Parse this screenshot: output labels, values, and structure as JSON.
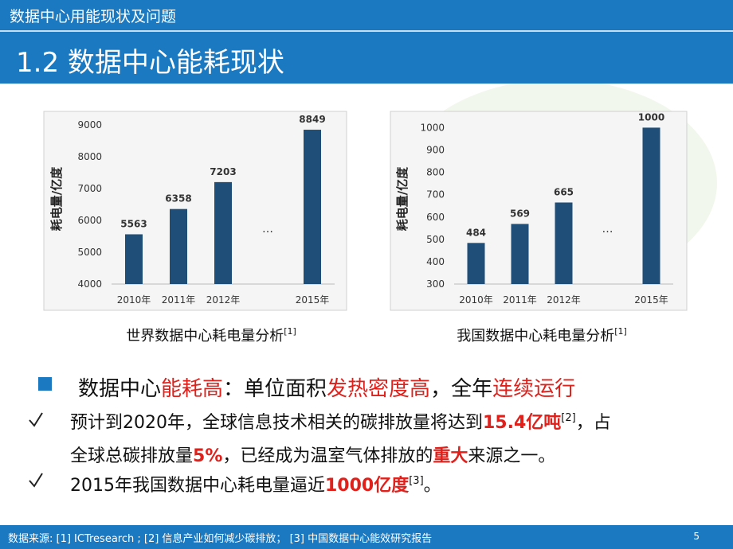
{
  "header": {
    "section": "数据中心用能现状及问题",
    "title": "1.2 数据中心能耗现状"
  },
  "chart_data": [
    {
      "type": "bar",
      "y_label": "耗电量/亿度",
      "categories": [
        "2010年",
        "2011年",
        "2012年",
        null,
        "2015年"
      ],
      "values": [
        5563,
        6358,
        7203,
        null,
        8849
      ],
      "color": "#1f4e79",
      "ylim": [
        4000,
        9300
      ],
      "yticks": [
        4000,
        5000,
        6000,
        7000,
        8000,
        9000
      ],
      "grid": false,
      "annotation": "…",
      "caption": "世界数据中心耗电量分析",
      "caption_ref": "[1]"
    },
    {
      "type": "bar",
      "y_label": "耗电量/亿度",
      "categories": [
        "2010年",
        "2011年",
        "2012年",
        null,
        "2015年"
      ],
      "values": [
        484,
        569,
        665,
        null,
        1000
      ],
      "color": "#1f4e79",
      "ylim": [
        300,
        1030
      ],
      "yticks": [
        300,
        400,
        500,
        600,
        700,
        800,
        900,
        1000
      ],
      "grid": false,
      "annotation": "…",
      "caption": "我国数据中心耗电量分析",
      "caption_ref": "[1]"
    }
  ],
  "bullets": [
    {
      "lines": [
        [
          {
            "text": "数据中心",
            "style": "plain"
          },
          {
            "text": "能耗高",
            "style": "red"
          },
          {
            "text": "：单位面积",
            "style": "plain"
          },
          {
            "text": "发热密度高",
            "style": "red"
          },
          {
            "text": "，全年",
            "style": "plain"
          },
          {
            "text": "连续运行",
            "style": "red"
          }
        ]
      ]
    },
    {
      "lines": [
        [
          {
            "text": "预计到2020年，全球信息技术相关的碳排放量将达到",
            "style": "plain"
          },
          {
            "text": "15.4亿吨",
            "style": "red-bold"
          },
          {
            "text": "[2]",
            "style": "sup"
          },
          {
            "text": "，占",
            "style": "plain"
          }
        ],
        [
          {
            "text": "全球总碳排放量",
            "style": "plain"
          },
          {
            "text": "5%",
            "style": "red-bold"
          },
          {
            "text": "，已经成为温室气体排放的",
            "style": "plain"
          },
          {
            "text": "重大",
            "style": "red-bold"
          },
          {
            "text": "来源之一。",
            "style": "plain"
          }
        ]
      ]
    },
    {
      "lines": [
        [
          {
            "text": "2015年我国数据中心耗电量逼近",
            "style": "plain"
          },
          {
            "text": "1000亿度",
            "style": "red-bold"
          },
          {
            "text": "[3]",
            "style": "sup"
          },
          {
            "text": "。",
            "style": "plain"
          }
        ]
      ]
    }
  ],
  "footer": {
    "source": "数据来源: [1] ICTresearch ; [2] 信息产业如何减少碳排放； [3] 中国数据中心能效研究报告",
    "page_number": "5"
  }
}
